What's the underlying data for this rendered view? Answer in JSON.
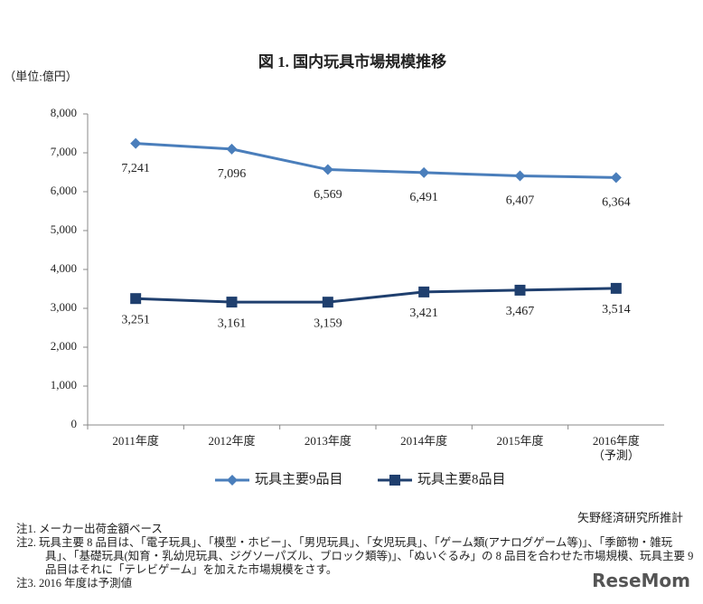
{
  "chart_data": {
    "type": "line",
    "title": "図 1. 国内玩具市場規模推移",
    "y_label": "（単位:億円）",
    "categories": [
      "2011年度",
      "2012年度",
      "2013年度",
      "2014年度",
      "2015年度",
      "2016年度"
    ],
    "category_note": "（予測）",
    "series": [
      {
        "name": "玩具主要9品目",
        "color": "#4a7ebb",
        "marker": "diamond",
        "values": [
          7241,
          7096,
          6569,
          6491,
          6407,
          6364
        ],
        "value_labels": [
          "7,241",
          "7,096",
          "6,569",
          "6,491",
          "6,407",
          "6,364"
        ]
      },
      {
        "name": "玩具主要8品目",
        "color": "#1f3f6e",
        "marker": "square",
        "values": [
          3251,
          3161,
          3159,
          3421,
          3467,
          3514
        ],
        "value_labels": [
          "3,251",
          "3,161",
          "3,159",
          "3,421",
          "3,467",
          "3,514"
        ]
      }
    ],
    "ylim": [
      0,
      8000
    ],
    "yticks": [
      0,
      {
        "value": 1000,
        "label": "1,000"
      },
      {
        "value": 2000,
        "label": "2,000"
      },
      {
        "value": 3000,
        "label": "3,000"
      },
      {
        "value": 4000,
        "label": "4,000"
      },
      {
        "value": 5000,
        "label": "5,000"
      },
      {
        "value": 6000,
        "label": "6,000"
      },
      {
        "value": 7000,
        "label": "7,000"
      },
      {
        "value": 8000,
        "label": "8,000"
      }
    ],
    "grid": false,
    "legend": "bottom"
  },
  "source": "矢野経済研究所推計",
  "notes": [
    "注1. メーカー出荷金額ベース",
    "注2. 玩具主要 8 品目は、「電子玩具」、「模型・ホビー」、「男児玩具」、「女児玩具」、「ゲーム類(アナログゲーム等)」、「季節物・雑玩具」、「基礎玩具(知育・乳幼児玩具、ジグソーパズル、ブロック類等)」、「ぬいぐるみ」の 8 品目を合わせた市場規模、玩具主要 9 品目はそれに「テレビゲーム」を加えた市場規模をさす。",
    "注3. 2016 年度は予測値"
  ],
  "logo": "ReseMom"
}
